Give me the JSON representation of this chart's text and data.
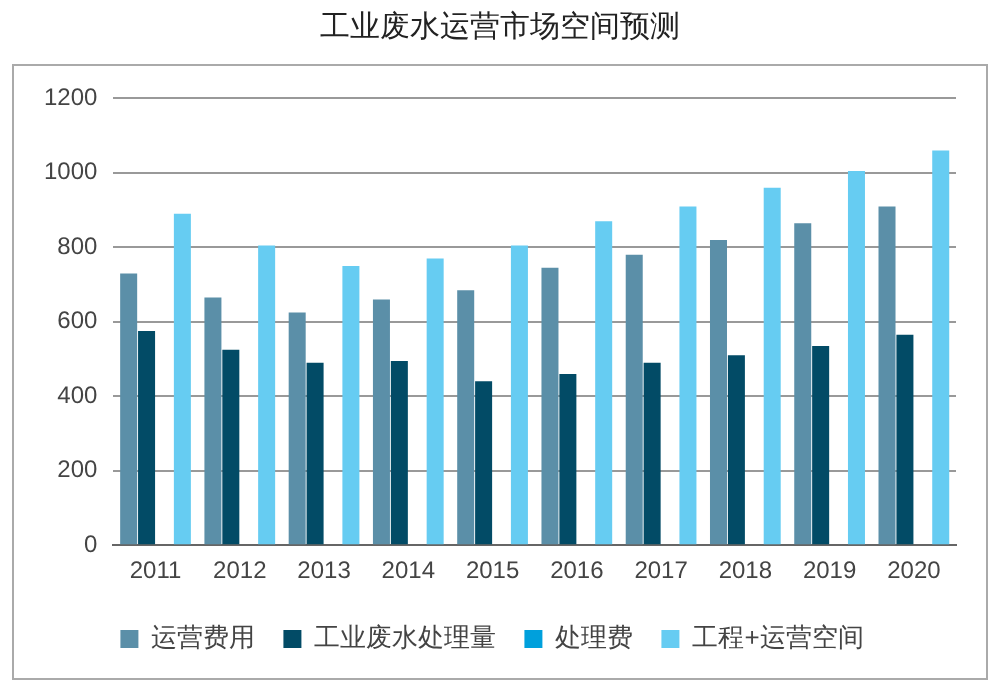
{
  "chart_data": {
    "type": "bar",
    "title": "工业废水运营市场空间预测",
    "categories": [
      "2011",
      "2012",
      "2013",
      "2014",
      "2015",
      "2016",
      "2017",
      "2018",
      "2019",
      "2020"
    ],
    "series": [
      {
        "name": "运营费用",
        "color": "#5b8fa8",
        "values": [
          730,
          665,
          625,
          660,
          685,
          745,
          780,
          820,
          865,
          910
        ]
      },
      {
        "name": "工业废水处理量",
        "color": "#024b66",
        "values": [
          575,
          525,
          490,
          495,
          440,
          460,
          490,
          510,
          535,
          565
        ]
      },
      {
        "name": "处理费",
        "color": "#00a0dc",
        "values": [
          null,
          null,
          null,
          null,
          null,
          null,
          null,
          null,
          null,
          null
        ]
      },
      {
        "name": "工程+运营空间",
        "color": "#66ccf2",
        "values": [
          890,
          805,
          750,
          770,
          805,
          870,
          910,
          960,
          1005,
          1060
        ]
      }
    ],
    "ylim": [
      0,
      1200
    ],
    "yticks": [
      0,
      200,
      400,
      600,
      800,
      1000,
      1200
    ],
    "grid": "y",
    "legend": "bottom"
  }
}
